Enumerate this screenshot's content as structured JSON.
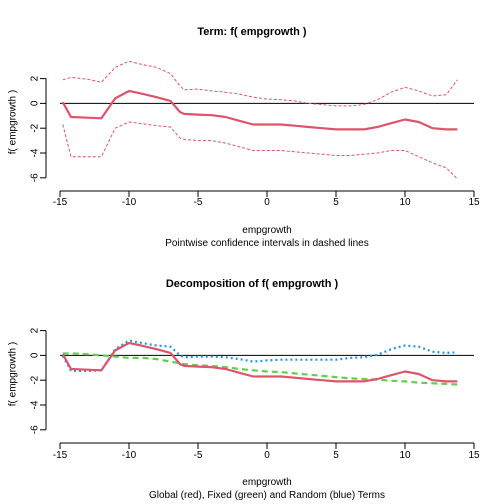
{
  "colors": {
    "global": "#df536b",
    "fixed": "#61d04f",
    "random": "#2297e6",
    "axis": "#000000"
  },
  "chart_data": [
    {
      "type": "line",
      "title": "Term:  f( empgrowth )",
      "xlabel": "empgrowth",
      "ylabel": "f( empgrowth )",
      "caption": "Pointwise confidence intervals in dashed lines",
      "xlim": [
        -15,
        15
      ],
      "ylim": [
        -6.5,
        3.5
      ],
      "xticks": [
        -15,
        -10,
        -5,
        0,
        5,
        10,
        15
      ],
      "yticks": [
        -6,
        -4,
        -2,
        0,
        2
      ],
      "grid": false,
      "reference_line_y": 0,
      "series": [
        {
          "role": "estimate",
          "style": "solid",
          "x": [
            -14.8,
            -14.2,
            -13,
            -12,
            -11,
            -10,
            -9.3,
            -8,
            -7,
            -6.3,
            -6,
            -5,
            -4,
            -3,
            -2,
            -1,
            0,
            1,
            2,
            3,
            4,
            5,
            6,
            7,
            8,
            9,
            10,
            11,
            12,
            13,
            13.8
          ],
          "y": [
            0.1,
            -1.1,
            -1.15,
            -1.2,
            0.4,
            1.0,
            0.85,
            0.5,
            0.2,
            -0.7,
            -0.85,
            -0.9,
            -0.95,
            -1.1,
            -1.4,
            -1.7,
            -1.7,
            -1.7,
            -1.8,
            -1.9,
            -2.0,
            -2.1,
            -2.1,
            -2.1,
            -1.9,
            -1.6,
            -1.3,
            -1.5,
            -2.0,
            -2.1,
            -2.1
          ]
        },
        {
          "role": "upper",
          "style": "dashed",
          "x": [
            -14.8,
            -14.2,
            -13,
            -12,
            -11,
            -10,
            -9.3,
            -8,
            -7,
            -6.3,
            -6,
            -5,
            -4,
            -3,
            -2,
            -1,
            0,
            1,
            2,
            3,
            4,
            5,
            6,
            7,
            8,
            9,
            10,
            11,
            12,
            13,
            13.8
          ],
          "y": [
            1.9,
            2.1,
            1.95,
            1.7,
            2.9,
            3.4,
            3.2,
            2.9,
            2.4,
            1.4,
            1.1,
            1.15,
            1.0,
            0.9,
            0.75,
            0.5,
            0.35,
            0.3,
            0.2,
            0.0,
            -0.1,
            -0.2,
            -0.2,
            -0.1,
            0.3,
            0.9,
            1.3,
            1.0,
            0.6,
            0.7,
            1.9
          ]
        },
        {
          "role": "lower",
          "style": "dashed",
          "x": [
            -14.8,
            -14.2,
            -13,
            -12,
            -11,
            -10,
            -9.3,
            -8,
            -7,
            -6.3,
            -6,
            -5,
            -4,
            -3,
            -2,
            -1,
            0,
            1,
            2,
            3,
            4,
            5,
            6,
            7,
            8,
            9,
            10,
            11,
            12,
            13,
            13.8
          ],
          "y": [
            -1.7,
            -4.3,
            -4.3,
            -4.3,
            -2.0,
            -1.5,
            -1.6,
            -1.8,
            -1.9,
            -2.8,
            -2.9,
            -3.0,
            -3.0,
            -3.2,
            -3.5,
            -3.8,
            -3.8,
            -3.8,
            -3.9,
            -4.0,
            -4.1,
            -4.2,
            -4.2,
            -4.1,
            -4.0,
            -3.8,
            -3.8,
            -4.3,
            -4.8,
            -5.2,
            -6.1
          ]
        }
      ]
    },
    {
      "type": "line",
      "title": "Decomposition of  f( empgrowth )",
      "xlabel": "empgrowth",
      "ylabel": "f( empgrowth )",
      "caption": "Global (red), Fixed (green) and Random (blue) Terms",
      "xlim": [
        -15,
        15
      ],
      "ylim": [
        -6.5,
        3.5
      ],
      "xticks": [
        -15,
        -10,
        -5,
        0,
        5,
        10,
        15
      ],
      "yticks": [
        -6,
        -4,
        -2,
        0,
        2
      ],
      "grid": false,
      "reference_line_y": 0,
      "series": [
        {
          "role": "global",
          "style": "solid",
          "x": [
            -14.8,
            -14.2,
            -13,
            -12,
            -11,
            -10,
            -9.3,
            -8,
            -7,
            -6.3,
            -6,
            -5,
            -4,
            -3,
            -2,
            -1,
            0,
            1,
            2,
            3,
            4,
            5,
            6,
            7,
            8,
            9,
            10,
            11,
            12,
            13,
            13.8
          ],
          "y": [
            0.1,
            -1.1,
            -1.15,
            -1.2,
            0.4,
            1.0,
            0.85,
            0.5,
            0.2,
            -0.7,
            -0.85,
            -0.9,
            -0.95,
            -1.1,
            -1.4,
            -1.7,
            -1.7,
            -1.7,
            -1.8,
            -1.9,
            -2.0,
            -2.1,
            -2.1,
            -2.1,
            -1.9,
            -1.6,
            -1.3,
            -1.5,
            -2.0,
            -2.1,
            -2.1
          ]
        },
        {
          "role": "fixed",
          "style": "dashed",
          "x": [
            -14.8,
            -14,
            -13,
            -12,
            -11,
            -10,
            -9,
            -8,
            -7,
            -6,
            -5,
            -4,
            -3,
            -2,
            -1,
            0,
            1,
            2,
            3,
            4,
            5,
            6,
            7,
            8,
            9,
            10,
            11,
            12,
            13,
            13.8
          ],
          "y": [
            0.15,
            0.15,
            0.1,
            0.0,
            -0.1,
            -0.2,
            -0.2,
            -0.3,
            -0.5,
            -0.7,
            -0.8,
            -0.85,
            -0.95,
            -1.1,
            -1.2,
            -1.3,
            -1.35,
            -1.45,
            -1.55,
            -1.65,
            -1.75,
            -1.85,
            -1.9,
            -1.95,
            -2.05,
            -2.1,
            -2.2,
            -2.25,
            -2.3,
            -2.35
          ]
        },
        {
          "role": "random",
          "style": "dotted",
          "x": [
            -14.8,
            -14.2,
            -13,
            -12,
            -11,
            -10,
            -9.3,
            -8,
            -7,
            -6.3,
            -6,
            -5,
            -4,
            -3,
            -2,
            -1,
            0,
            1,
            2,
            3,
            4,
            5,
            6,
            7,
            8,
            9,
            10,
            11,
            12,
            13,
            13.8
          ],
          "y": [
            -0.05,
            -1.25,
            -1.25,
            -1.2,
            0.5,
            1.2,
            1.05,
            0.8,
            0.7,
            0.0,
            -0.15,
            -0.1,
            -0.1,
            -0.15,
            -0.3,
            -0.5,
            -0.4,
            -0.35,
            -0.35,
            -0.35,
            -0.35,
            -0.35,
            -0.2,
            -0.15,
            0.05,
            0.5,
            0.8,
            0.7,
            0.3,
            0.2,
            0.25
          ]
        }
      ]
    }
  ]
}
